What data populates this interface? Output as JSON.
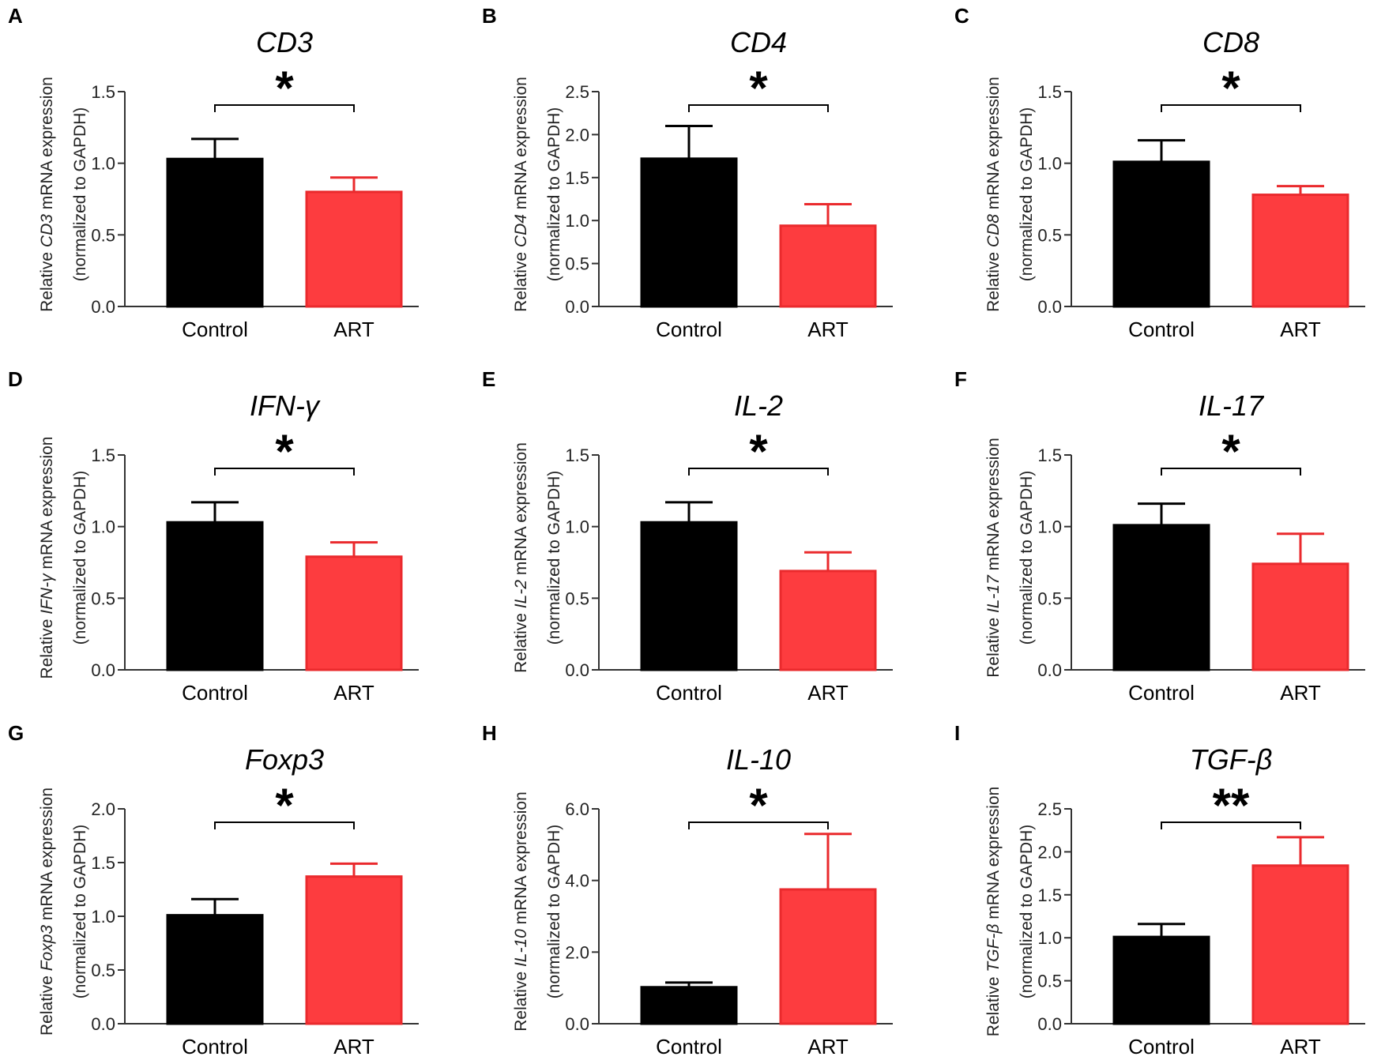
{
  "figure": {
    "colors": {
      "control": "#000000",
      "art_fill": "#fd3c3f",
      "art_edge": "#ea2a2d",
      "axis": "#333333"
    },
    "categories": [
      "Control",
      "ART"
    ]
  },
  "chart_data": [
    {
      "panel": "A",
      "type": "bar",
      "title": "CD3",
      "gene": "CD3",
      "ylabel_prefix": "Relative",
      "ylabel_suffix": "mRNA expression",
      "ylabel_line2": "(normalized to GAPDH)",
      "categories": [
        "Control",
        "ART"
      ],
      "values": [
        1.03,
        0.8
      ],
      "errors": [
        0.14,
        0.1
      ],
      "ylim": [
        0,
        1.5
      ],
      "ticks": [
        "0.0",
        "0.5",
        "1.0",
        "1.5"
      ],
      "tick_values": [
        0,
        0.5,
        1.0,
        1.5
      ],
      "significance": "*"
    },
    {
      "panel": "B",
      "type": "bar",
      "title": "CD4",
      "gene": "CD4",
      "ylabel_prefix": "Relative",
      "ylabel_suffix": "mRNA expression",
      "ylabel_line2": "(normalized to GAPDH)",
      "categories": [
        "Control",
        "ART"
      ],
      "values": [
        1.72,
        0.94
      ],
      "errors": [
        0.38,
        0.25
      ],
      "ylim": [
        0,
        2.5
      ],
      "ticks": [
        "0.0",
        "0.5",
        "1.0",
        "1.5",
        "2.0",
        "2.5"
      ],
      "tick_values": [
        0,
        0.5,
        1.0,
        1.5,
        2.0,
        2.5
      ],
      "significance": "*"
    },
    {
      "panel": "C",
      "type": "bar",
      "title": "CD8",
      "gene": "CD8",
      "ylabel_prefix": "Relative",
      "ylabel_suffix": "mRNA expression",
      "ylabel_line2": "(normalized to GAPDH)",
      "categories": [
        "Control",
        "ART"
      ],
      "values": [
        1.01,
        0.78
      ],
      "errors": [
        0.15,
        0.06
      ],
      "ylim": [
        0,
        1.5
      ],
      "ticks": [
        "0.0",
        "0.5",
        "1.0",
        "1.5"
      ],
      "tick_values": [
        0,
        0.5,
        1.0,
        1.5
      ],
      "significance": "*"
    },
    {
      "panel": "D",
      "type": "bar",
      "title": "IFN-γ",
      "gene": "IFN-γ",
      "ylabel_prefix": "Relative",
      "ylabel_suffix": "mRNA expression",
      "ylabel_line2": "(normalized to GAPDH)",
      "categories": [
        "Control",
        "ART"
      ],
      "values": [
        1.03,
        0.79
      ],
      "errors": [
        0.14,
        0.1
      ],
      "ylim": [
        0,
        1.5
      ],
      "ticks": [
        "0.0",
        "0.5",
        "1.0",
        "1.5"
      ],
      "tick_values": [
        0,
        0.5,
        1.0,
        1.5
      ],
      "significance": "*"
    },
    {
      "panel": "E",
      "type": "bar",
      "title": "IL-2",
      "gene": "IL-2",
      "ylabel_prefix": "Relative",
      "ylabel_suffix": "mRNA expression",
      "ylabel_line2": "(normalized to GAPDH)",
      "categories": [
        "Control",
        "ART"
      ],
      "values": [
        1.03,
        0.69
      ],
      "errors": [
        0.14,
        0.13
      ],
      "ylim": [
        0,
        1.5
      ],
      "ticks": [
        "0.0",
        "0.5",
        "1.0",
        "1.5"
      ],
      "tick_values": [
        0,
        0.5,
        1.0,
        1.5
      ],
      "significance": "*"
    },
    {
      "panel": "F",
      "type": "bar",
      "title": "IL-17",
      "gene": "IL-17",
      "ylabel_prefix": "Relative",
      "ylabel_suffix": "mRNA expression",
      "ylabel_line2": "(normalized to GAPDH)",
      "categories": [
        "Control",
        "ART"
      ],
      "values": [
        1.01,
        0.74
      ],
      "errors": [
        0.15,
        0.21
      ],
      "ylim": [
        0,
        1.5
      ],
      "ticks": [
        "0.0",
        "0.5",
        "1.0",
        "1.5"
      ],
      "tick_values": [
        0,
        0.5,
        1.0,
        1.5
      ],
      "significance": "*"
    },
    {
      "panel": "G",
      "type": "bar",
      "title": "Foxp3",
      "gene": "Foxp3",
      "ylabel_prefix": "Relative",
      "ylabel_suffix": "mRNA expression",
      "ylabel_line2": "(normalized to GAPDH)",
      "categories": [
        "Control",
        "ART"
      ],
      "values": [
        1.01,
        1.37
      ],
      "errors": [
        0.15,
        0.12
      ],
      "ylim": [
        0,
        2.0
      ],
      "ticks": [
        "0.0",
        "0.5",
        "1.0",
        "1.5",
        "2.0"
      ],
      "tick_values": [
        0,
        0.5,
        1.0,
        1.5,
        2.0
      ],
      "significance": "*"
    },
    {
      "panel": "H",
      "type": "bar",
      "title": "IL-10",
      "gene": "IL-10",
      "ylabel_prefix": "Relative",
      "ylabel_suffix": "mRNA expression",
      "ylabel_line2": "(normalized to GAPDH)",
      "categories": [
        "Control",
        "ART"
      ],
      "values": [
        1.02,
        3.75
      ],
      "errors": [
        0.13,
        1.55
      ],
      "ylim": [
        0,
        6.0
      ],
      "ticks": [
        "0.0",
        "2.0",
        "4.0",
        "6.0"
      ],
      "tick_values": [
        0,
        2.0,
        4.0,
        6.0
      ],
      "significance": "*"
    },
    {
      "panel": "I",
      "type": "bar",
      "title": "TGF-β",
      "gene": "TGF-β",
      "ylabel_prefix": "Relative",
      "ylabel_suffix": "mRNA expression",
      "ylabel_line2": "(normalized to GAPDH)",
      "categories": [
        "Control",
        "ART"
      ],
      "values": [
        1.01,
        1.84
      ],
      "errors": [
        0.15,
        0.33
      ],
      "ylim": [
        0,
        2.5
      ],
      "ticks": [
        "0.0",
        "0.5",
        "1.0",
        "1.5",
        "2.0",
        "2.5"
      ],
      "tick_values": [
        0,
        0.5,
        1.0,
        1.5,
        2.0,
        2.5
      ],
      "significance": "**"
    }
  ]
}
